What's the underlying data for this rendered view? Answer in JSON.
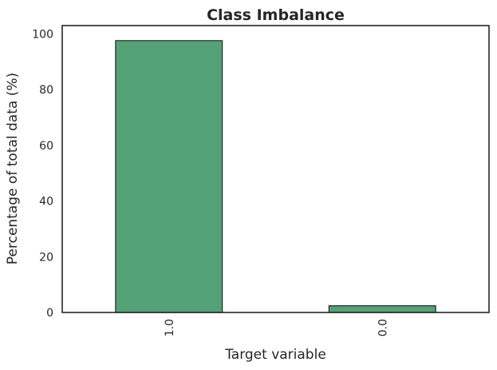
{
  "chart_data": {
    "type": "bar",
    "title": "Class Imbalance",
    "xlabel": "Target variable",
    "ylabel": "Percentage of total data (%)",
    "categories": [
      "1.0",
      "0.0"
    ],
    "values": [
      97.6,
      2.4
    ],
    "ylim": [
      0,
      103
    ],
    "yticks": [
      0,
      20,
      40,
      60,
      80,
      100
    ],
    "bar_color": "#55a278",
    "bar_edge_color": "#262626",
    "grid": false,
    "x_tick_rotation": "vertical"
  }
}
